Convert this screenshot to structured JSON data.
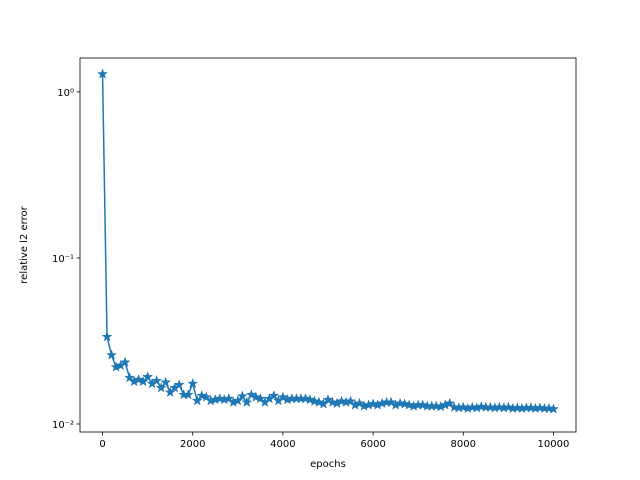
{
  "chart_data": {
    "type": "line",
    "xlabel": "epochs",
    "ylabel": "relative l2 error",
    "yscale": "log",
    "grid": false,
    "marker": "star",
    "x": [
      0,
      100,
      200,
      300,
      400,
      500,
      600,
      700,
      800,
      900,
      1000,
      1100,
      1200,
      1300,
      1400,
      1500,
      1600,
      1700,
      1800,
      1900,
      2000,
      2100,
      2200,
      2300,
      2400,
      2500,
      2600,
      2700,
      2800,
      2900,
      3000,
      3100,
      3200,
      3300,
      3400,
      3500,
      3600,
      3700,
      3800,
      3900,
      4000,
      4100,
      4200,
      4300,
      4400,
      4500,
      4600,
      4700,
      4800,
      4900,
      5000,
      5100,
      5200,
      5300,
      5400,
      5500,
      5600,
      5700,
      5800,
      5900,
      6000,
      6100,
      6200,
      6300,
      6400,
      6500,
      6600,
      6700,
      6800,
      6900,
      7000,
      7100,
      7200,
      7300,
      7400,
      7500,
      7600,
      7700,
      7800,
      7900,
      8000,
      8100,
      8200,
      8300,
      8400,
      8500,
      8600,
      8700,
      8800,
      8900,
      9000,
      9100,
      9200,
      9300,
      9400,
      9500,
      9600,
      9700,
      9800,
      9900,
      10000
    ],
    "series": [
      {
        "color": "#1f77b4",
        "values": [
          1.28,
          0.0335,
          0.026,
          0.022,
          0.0225,
          0.0235,
          0.019,
          0.018,
          0.0185,
          0.018,
          0.0192,
          0.0175,
          0.0182,
          0.0165,
          0.0178,
          0.0155,
          0.0165,
          0.0172,
          0.015,
          0.015,
          0.0175,
          0.0138,
          0.0148,
          0.0145,
          0.0138,
          0.014,
          0.0142,
          0.014,
          0.0142,
          0.0135,
          0.0138,
          0.0147,
          0.0135,
          0.015,
          0.0145,
          0.0142,
          0.0135,
          0.0142,
          0.0148,
          0.0138,
          0.0145,
          0.014,
          0.0142,
          0.0142,
          0.0142,
          0.0142,
          0.014,
          0.0137,
          0.0135,
          0.0132,
          0.014,
          0.0135,
          0.0133,
          0.0137,
          0.0135,
          0.0137,
          0.013,
          0.0133,
          0.0128,
          0.013,
          0.0132,
          0.013,
          0.0133,
          0.0135,
          0.0135,
          0.013,
          0.0133,
          0.0132,
          0.013,
          0.0128,
          0.013,
          0.013,
          0.0128,
          0.0128,
          0.0128,
          0.0127,
          0.013,
          0.0133,
          0.0126,
          0.0125,
          0.0126,
          0.0124,
          0.0126,
          0.0125,
          0.0127,
          0.0126,
          0.0126,
          0.0125,
          0.0126,
          0.0125,
          0.0126,
          0.0124,
          0.0125,
          0.0124,
          0.0125,
          0.0125,
          0.0124,
          0.0125,
          0.0124,
          0.0124,
          0.0123
        ]
      }
    ],
    "xlim": [
      -500,
      10500
    ],
    "ylim": [
      0.00895,
      1.6
    ],
    "xticks": [
      0,
      2000,
      4000,
      6000,
      8000,
      10000
    ],
    "yticks": [
      {
        "value": 0.01,
        "label": "10⁻²"
      },
      {
        "value": 0.1,
        "label": "10⁻¹"
      },
      {
        "value": 1,
        "label": "10⁰"
      }
    ]
  }
}
